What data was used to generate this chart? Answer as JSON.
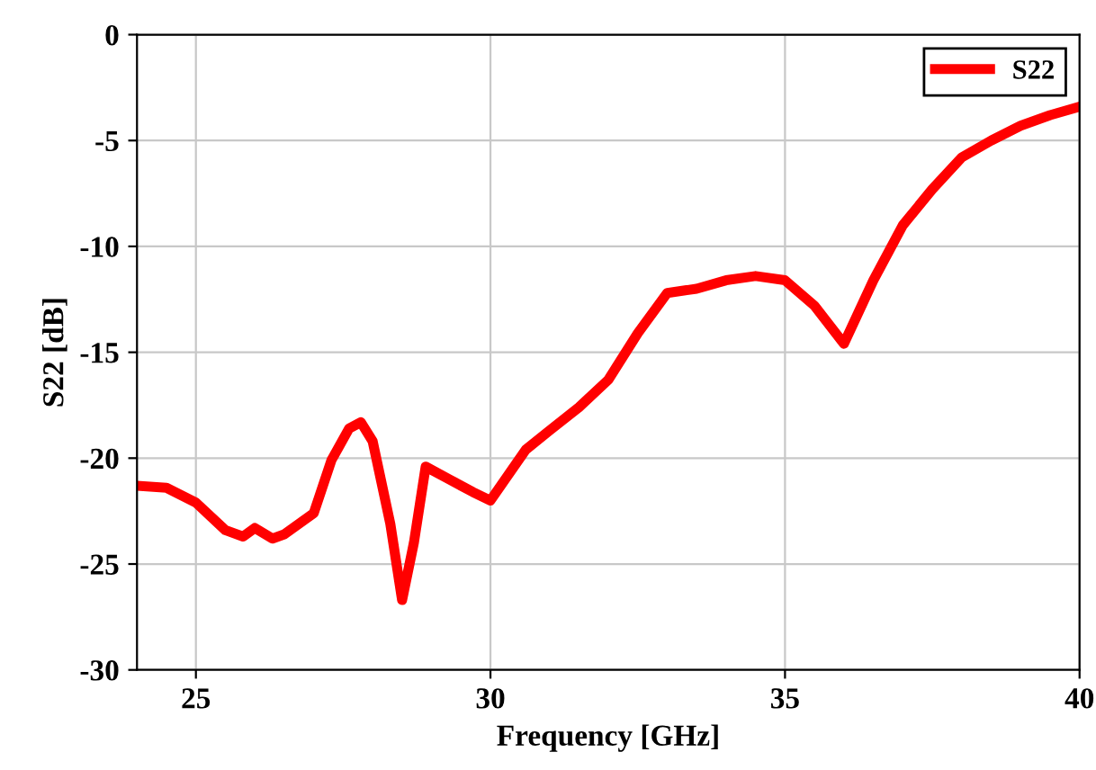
{
  "chart_data": {
    "type": "line",
    "xlabel": "Frequency [GHz]",
    "ylabel": "S22 [dB]",
    "x": [
      24,
      24.5,
      25,
      25.5,
      25.8,
      26,
      26.3,
      26.5,
      27,
      27.3,
      27.6,
      27.8,
      28,
      28.3,
      28.5,
      28.7,
      28.9,
      29.3,
      29.7,
      30,
      30.3,
      30.6,
      31,
      31.5,
      32,
      32.5,
      33,
      33.5,
      34,
      34.5,
      35,
      35.5,
      36,
      36.5,
      37,
      37.5,
      38,
      38.5,
      39,
      39.5,
      40
    ],
    "series": [
      {
        "name": "S22",
        "color": "#ff0000",
        "values": [
          -21.3,
          -21.4,
          -22.1,
          -23.4,
          -23.7,
          -23.3,
          -23.8,
          -23.6,
          -22.6,
          -20.1,
          -18.6,
          -18.3,
          -19.2,
          -23.1,
          -26.7,
          -24,
          -20.4,
          -21,
          -21.6,
          -22,
          -20.8,
          -19.6,
          -18.7,
          -17.6,
          -16.3,
          -14.1,
          -12.2,
          -12,
          -11.6,
          -11.4,
          -11.6,
          -12.8,
          -14.6,
          -11.6,
          -9,
          -7.3,
          -5.8,
          -5,
          -4.3,
          -3.8,
          -3.4
        ]
      }
    ],
    "xlim": [
      24,
      40
    ],
    "xticks": [
      25,
      30,
      35,
      40
    ],
    "ylim": [
      -30,
      0
    ],
    "yticks": [
      -30,
      -25,
      -20,
      -15,
      -10,
      -5,
      0
    ],
    "grid": true,
    "legend": "top right",
    "line_style": "solid",
    "marker": "none"
  }
}
